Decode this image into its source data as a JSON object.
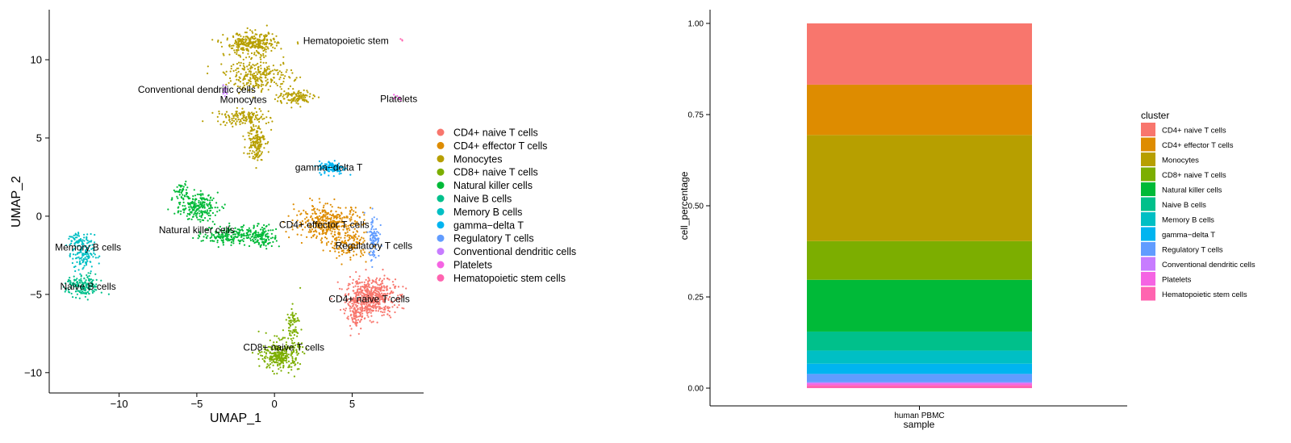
{
  "chart_data": [
    {
      "type": "scatter",
      "xlabel": "UMAP_1",
      "ylabel": "UMAP_2",
      "xticks": [
        -10,
        -5,
        0,
        5
      ],
      "yticks": [
        -10,
        -5,
        0,
        5,
        10
      ],
      "xlim": [
        -14.5,
        9.6
      ],
      "ylim": [
        -11.3,
        13.2
      ],
      "legend_position": "right",
      "series": [
        {
          "name": "CD4+ naive T cells",
          "color": "#F8766D",
          "regions": [
            {
              "center": [
                6.2,
                -5.2
              ],
              "spread": [
                1.3,
                1.0
              ],
              "count": 560
            },
            {
              "center": [
                5.2,
                -6.4
              ],
              "spread": [
                0.5,
                0.8
              ],
              "count": 80
            }
          ]
        },
        {
          "name": "CD4+ effector T cells",
          "color": "#DE8C00",
          "regions": [
            {
              "center": [
                3.5,
                -0.4
              ],
              "spread": [
                1.8,
                0.9
              ],
              "count": 380
            },
            {
              "center": [
                4.8,
                -1.9
              ],
              "spread": [
                1.0,
                0.7
              ],
              "count": 120
            }
          ]
        },
        {
          "name": "Monocytes",
          "color": "#B79F00",
          "regions": [
            {
              "center": [
                -1.5,
                11.0
              ],
              "spread": [
                1.4,
                0.6
              ],
              "count": 300
            },
            {
              "center": [
                -1.0,
                9.0
              ],
              "spread": [
                1.8,
                0.8
              ],
              "count": 260
            },
            {
              "center": [
                -2.0,
                6.3
              ],
              "spread": [
                1.4,
                0.4
              ],
              "count": 140
            },
            {
              "center": [
                -1.2,
                4.8
              ],
              "spread": [
                0.5,
                1.0
              ],
              "count": 160
            },
            {
              "center": [
                1.3,
                7.6
              ],
              "spread": [
                1.0,
                0.4
              ],
              "count": 110
            }
          ]
        },
        {
          "name": "CD8+ naive T cells",
          "color": "#7CAE00",
          "regions": [
            {
              "center": [
                0.4,
                -8.9
              ],
              "spread": [
                1.0,
                0.8
              ],
              "count": 300
            },
            {
              "center": [
                1.2,
                -6.9
              ],
              "spread": [
                0.4,
                0.9
              ],
              "count": 70
            }
          ]
        },
        {
          "name": "Natural killer cells",
          "color": "#00BA38",
          "regions": [
            {
              "center": [
                -5.0,
                0.6
              ],
              "spread": [
                1.1,
                0.7
              ],
              "count": 220
            },
            {
              "center": [
                -2.8,
                -1.2
              ],
              "spread": [
                1.5,
                0.5
              ],
              "count": 200
            },
            {
              "center": [
                -0.7,
                -1.3
              ],
              "spread": [
                0.7,
                0.6
              ],
              "count": 120
            },
            {
              "center": [
                -6.0,
                1.6
              ],
              "spread": [
                0.4,
                0.5
              ],
              "count": 40
            }
          ]
        },
        {
          "name": "Naive B cells",
          "color": "#00C08B",
          "regions": [
            {
              "center": [
                -12.3,
                -4.5
              ],
              "spread": [
                0.9,
                0.6
              ],
              "count": 170
            }
          ]
        },
        {
          "name": "Memory B cells",
          "color": "#00BFC4",
          "regions": [
            {
              "center": [
                -12.3,
                -2.4
              ],
              "spread": [
                0.6,
                1.0
              ],
              "count": 140
            },
            {
              "center": [
                -12.8,
                -1.5
              ],
              "spread": [
                0.3,
                0.4
              ],
              "count": 40
            }
          ]
        },
        {
          "name": "gamma−delta T",
          "color": "#00B4F0",
          "regions": [
            {
              "center": [
                3.7,
                3.1
              ],
              "spread": [
                0.7,
                0.35
              ],
              "count": 130
            }
          ]
        },
        {
          "name": "Regulatory T cells",
          "color": "#619CFF",
          "regions": [
            {
              "center": [
                6.4,
                -1.3
              ],
              "spread": [
                0.3,
                1.2
              ],
              "count": 90
            }
          ]
        },
        {
          "name": "Conventional dendritic cells",
          "color": "#C77CFF",
          "regions": [
            {
              "center": [
                -3.2,
                8.0
              ],
              "spread": [
                0.15,
                0.35
              ],
              "count": 14
            }
          ]
        },
        {
          "name": "Platelets",
          "color": "#F564E3",
          "regions": [
            {
              "center": [
                7.9,
                7.5
              ],
              "spread": [
                0.25,
                0.2
              ],
              "count": 8
            }
          ]
        },
        {
          "name": "Hematopoietic stem cells",
          "color": "#FF64B0",
          "regions": [
            {
              "center": [
                8.2,
                11.3
              ],
              "spread": [
                0.1,
                0.1
              ],
              "count": 3
            }
          ]
        }
      ],
      "annotations": [
        {
          "text": "Hematopoietic stem",
          "x": 4.6,
          "y": 11.0
        },
        {
          "text": "Conventional dendritic cells",
          "x": -5.0,
          "y": 7.9
        },
        {
          "text": "Monocytes",
          "x": -2.0,
          "y": 7.25
        },
        {
          "text": "Platelets",
          "x": 8.0,
          "y": 7.3
        },
        {
          "text": "gamma−delta T",
          "x": 3.5,
          "y": 2.9
        },
        {
          "text": "CD4+ effector T cells",
          "x": 3.2,
          "y": -0.75
        },
        {
          "text": "Natural killer cells",
          "x": -5.0,
          "y": -1.1
        },
        {
          "text": "Regulatory T cells",
          "x": 6.4,
          "y": -2.1
        },
        {
          "text": "Memory B cells",
          "x": -12.0,
          "y": -2.2
        },
        {
          "text": "Naive B cells",
          "x": -12.0,
          "y": -4.7
        },
        {
          "text": "CD4+ naive T cells",
          "x": 6.1,
          "y": -5.5
        },
        {
          "text": "CD8+ naive T cells",
          "x": 0.6,
          "y": -8.6
        }
      ]
    },
    {
      "type": "bar",
      "stacked": true,
      "categories": [
        "human PBMC"
      ],
      "xlabel": "sample",
      "ylabel": "cell_percentage",
      "ylim": [
        0,
        1
      ],
      "yticks": [
        "0.00",
        "0.25",
        "0.50",
        "0.75",
        "1.00"
      ],
      "legend_title": "cluster",
      "legend_position": "right",
      "series": [
        {
          "name": "CD4+ naive T cells",
          "color": "#F8766D",
          "values": [
            0.168
          ]
        },
        {
          "name": "CD4+ effector T cells",
          "color": "#DE8C00",
          "values": [
            0.138
          ]
        },
        {
          "name": "Monocytes",
          "color": "#B79F00",
          "values": [
            0.291
          ]
        },
        {
          "name": "CD8+ naive T cells",
          "color": "#7CAE00",
          "values": [
            0.106
          ]
        },
        {
          "name": "Natural killer cells",
          "color": "#00BA38",
          "values": [
            0.142
          ]
        },
        {
          "name": "Naive B cells",
          "color": "#00C08B",
          "values": [
            0.052
          ]
        },
        {
          "name": "Memory B cells",
          "color": "#00BFC4",
          "values": [
            0.036
          ]
        },
        {
          "name": "gamma−delta T",
          "color": "#00B4F0",
          "values": [
            0.028
          ]
        },
        {
          "name": "Regulatory T cells",
          "color": "#619CFF",
          "values": [
            0.023
          ]
        },
        {
          "name": "Conventional dendritic cells",
          "color": "#C77CFF",
          "values": [
            0.003
          ]
        },
        {
          "name": "Platelets",
          "color": "#F564E3",
          "values": [
            0.005
          ]
        },
        {
          "name": "Hematopoietic stem cells",
          "color": "#FF64B0",
          "values": [
            0.008
          ]
        }
      ]
    }
  ]
}
